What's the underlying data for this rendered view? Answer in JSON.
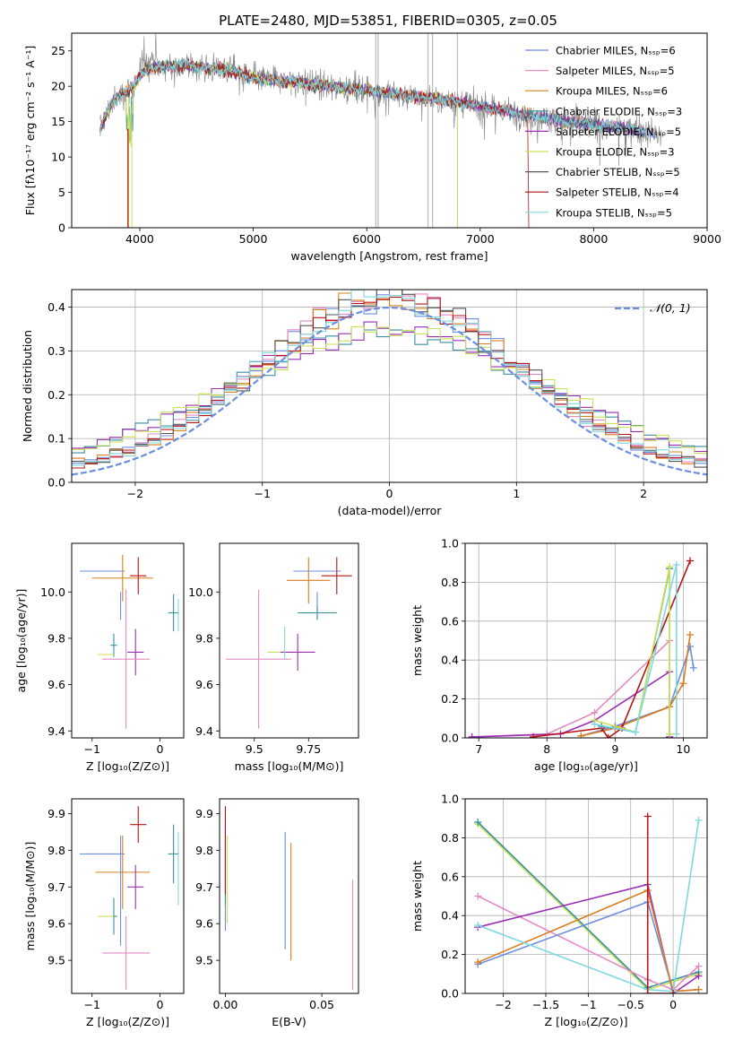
{
  "chart_data": [
    {
      "id": "spectrum",
      "type": "line",
      "title": "PLATE=2480, MJD=53851, FIBERID=0305, z=0.05",
      "xlabel": "wavelength [Angstrom, rest frame]",
      "ylabel": "Flux [fλ10⁻¹⁷ erg cm⁻² s⁻¹ A⁻¹]",
      "xlim": [
        3400,
        9000
      ],
      "ylim": [
        0,
        27.5
      ],
      "xticks": [
        4000,
        5000,
        6000,
        7000,
        8000,
        9000
      ],
      "yticks": [
        0,
        5,
        10,
        15,
        20,
        25
      ],
      "grid": false,
      "legend_position": "top-right",
      "legend": [
        {
          "name": "Chabrier MILES, Nₛₛₚ=6",
          "color": "#6b8ee0"
        },
        {
          "name": "Salpeter MILES, Nₛₛₚ=5",
          "color": "#e38bc3"
        },
        {
          "name": "Kroupa MILES, Nₛₛₚ=6",
          "color": "#d97e1f"
        },
        {
          "name": "Chabrier ELODIE, Nₛₛₚ=3",
          "color": "#3a8fa0"
        },
        {
          "name": "Salpeter ELODIE, Nₛₛₚ=5",
          "color": "#9b2fb4"
        },
        {
          "name": "Kroupa ELODIE, Nₛₛₚ=3",
          "color": "#c9e25a"
        },
        {
          "name": "Chabrier STELIB, Nₛₛₚ=5",
          "color": "#555555"
        },
        {
          "name": "Salpeter STELIB, Nₛₛₚ=4",
          "color": "#b81414"
        },
        {
          "name": "Kroupa STELIB, Nₛₛₚ=5",
          "color": "#7fd8e0"
        }
      ],
      "envelope": {
        "x": [
          3650,
          3750,
          3850,
          3950,
          4050,
          4200,
          4400,
          4600,
          4800,
          5000,
          5200,
          5400,
          5600,
          5800,
          6000,
          6200,
          6400,
          6600,
          6800,
          7000,
          7200,
          7400,
          7600,
          7800,
          8000,
          8200,
          8400,
          8600
        ],
        "y": [
          14,
          17.5,
          19,
          20,
          22.5,
          22.8,
          23,
          22.6,
          22.2,
          21.2,
          20.8,
          20.5,
          20.2,
          19.8,
          19.5,
          19.0,
          18.6,
          18.2,
          17.8,
          17.2,
          16.6,
          16.0,
          15.5,
          15.0,
          14.6,
          14.2,
          13.8,
          13.0
        ]
      },
      "data_series_end": 8600
    },
    {
      "id": "residuals",
      "type": "line",
      "xlabel": "(data-model)/error",
      "ylabel": "Normed distribution",
      "xlim": [
        -2.5,
        2.5
      ],
      "ylim": [
        0,
        0.44
      ],
      "xticks": [
        -2,
        -1,
        0,
        1,
        2
      ],
      "yticks": [
        0.0,
        0.1,
        0.2,
        0.3,
        0.4
      ],
      "grid": true,
      "legend_position": "top-right",
      "legend": [
        {
          "name": "𝒩(0, 1)",
          "color": "#6b8ee0",
          "style": "dashed"
        }
      ],
      "gaussian": {
        "mu": 0,
        "sigma": 1
      }
    },
    {
      "id": "age-vs-Z",
      "type": "scatter",
      "xlabel": "Z [log₁₀(Z/Z⊙)]",
      "ylabel": "age  [log₁₀(age/yr)]",
      "xlim": [
        -1.3,
        0.35
      ],
      "ylim": [
        9.37,
        10.21
      ],
      "xticks": [
        -1,
        0
      ],
      "yticks": [
        9.4,
        9.6,
        9.8,
        10.0
      ],
      "grid": false,
      "points": [
        {
          "x": -0.85,
          "xerr": 0.33,
          "y": 10.09,
          "yerr": 0.0,
          "color": "#6b8ee0"
        },
        {
          "x": -0.55,
          "xerr": 0.45,
          "y": 10.06,
          "yerr": 0.1,
          "color": "#d97e1f"
        },
        {
          "x": -0.32,
          "xerr": 0.12,
          "y": 10.07,
          "yerr": 0.08,
          "color": "#b81414"
        },
        {
          "x": -0.58,
          "xerr": 0.0,
          "y": 9.94,
          "yerr": 0.06,
          "color": "#6b8ee0"
        },
        {
          "x": 0.2,
          "xerr": 0.08,
          "y": 9.91,
          "yerr": 0.08,
          "color": "#3a8fa0"
        },
        {
          "x": -0.68,
          "xerr": 0.05,
          "y": 9.77,
          "yerr": 0.05,
          "color": "#3a8fa0"
        },
        {
          "x": -0.8,
          "xerr": 0.12,
          "y": 9.73,
          "yerr": 0.0,
          "color": "#c9e25a"
        },
        {
          "x": -0.36,
          "xerr": 0.12,
          "y": 9.74,
          "yerr": 0.1,
          "color": "#9b2fb4"
        },
        {
          "x": -0.5,
          "xerr": 0.35,
          "y": 9.71,
          "yerr": 0.3,
          "color": "#e38bc3"
        },
        {
          "x": 0.27,
          "xerr": 0.0,
          "y": 9.9,
          "yerr": 0.07,
          "color": "#7fd8e0"
        }
      ]
    },
    {
      "id": "age-vs-mass",
      "type": "scatter",
      "xlabel": "mass [log₁₀(M/M⊙)]",
      "ylabel": "",
      "xlim": [
        9.34,
        9.98
      ],
      "ylim": [
        9.37,
        10.21
      ],
      "xticks": [
        9.5,
        9.75
      ],
      "yticks": [
        9.4,
        9.6,
        9.8,
        10.0
      ],
      "grid": false,
      "points": [
        {
          "x": 9.79,
          "xerr": 0.11,
          "y": 10.09,
          "yerr": 0.0,
          "color": "#6b8ee0"
        },
        {
          "x": 9.75,
          "xerr": 0.1,
          "y": 10.05,
          "yerr": 0.1,
          "color": "#d97e1f"
        },
        {
          "x": 9.88,
          "xerr": 0.07,
          "y": 10.07,
          "yerr": 0.08,
          "color": "#b81414"
        },
        {
          "x": 9.79,
          "xerr": 0.0,
          "y": 9.94,
          "yerr": 0.06,
          "color": "#6b8ee0"
        },
        {
          "x": 9.79,
          "xerr": 0.09,
          "y": 9.91,
          "yerr": 0.03,
          "color": "#3a8fa0"
        },
        {
          "x": 9.63,
          "xerr": 0.07,
          "y": 9.74,
          "yerr": 0.0,
          "color": "#c9e25a"
        },
        {
          "x": 9.7,
          "xerr": 0.08,
          "y": 9.74,
          "yerr": 0.08,
          "color": "#9b2fb4"
        },
        {
          "x": 9.52,
          "xerr": 0.15,
          "y": 9.71,
          "yerr": 0.3,
          "color": "#e38bc3"
        },
        {
          "x": 9.64,
          "xerr": 0.0,
          "y": 9.78,
          "yerr": 0.07,
          "color": "#7fd8e0"
        }
      ]
    },
    {
      "id": "weight-vs-age",
      "type": "line",
      "xlabel": "age  [log₁₀(age/yr)]",
      "ylabel": "mass weight",
      "xlim": [
        6.8,
        10.35
      ],
      "ylim": [
        0,
        1.0
      ],
      "xticks": [
        7,
        8,
        9,
        10
      ],
      "yticks": [
        0.0,
        0.2,
        0.4,
        0.6,
        0.8,
        1.0
      ],
      "grid": true,
      "series": [
        {
          "color": "#e38bc3",
          "x": [
            6.9,
            8.0,
            8.7,
            9.8,
            9.8
          ],
          "y": [
            0.005,
            0.02,
            0.13,
            0.5,
            0.005
          ]
        },
        {
          "color": "#9b2fb4",
          "x": [
            6.9,
            8.2,
            8.7,
            9.8,
            9.8
          ],
          "y": [
            0.005,
            0.02,
            0.09,
            0.34,
            0.005
          ]
        },
        {
          "color": "#6b8ee0",
          "x": [
            8.5,
            9.0,
            9.8,
            10.1,
            10.15
          ],
          "y": [
            0.01,
            0.06,
            0.16,
            0.47,
            0.36
          ]
        },
        {
          "color": "#d97e1f",
          "x": [
            8.5,
            9.0,
            9.8,
            10.0,
            10.1
          ],
          "y": [
            0.01,
            0.05,
            0.16,
            0.28,
            0.53
          ]
        },
        {
          "color": "#b81414",
          "x": [
            7.8,
            8.8,
            8.9,
            9.1,
            10.1
          ],
          "y": [
            0.005,
            0.05,
            0.0,
            0.05,
            0.91
          ]
        },
        {
          "color": "#3a8fa0",
          "x": [
            8.8,
            9.3,
            9.8,
            9.8
          ],
          "y": [
            0.06,
            0.03,
            0.87,
            0.02
          ]
        },
        {
          "color": "#c9e25a",
          "x": [
            8.7,
            9.3,
            9.8,
            9.8
          ],
          "y": [
            0.09,
            0.03,
            0.88,
            0.02
          ]
        },
        {
          "color": "#7fd8e0",
          "x": [
            8.7,
            9.3,
            9.9,
            9.9
          ],
          "y": [
            0.07,
            0.03,
            0.89,
            0.02
          ]
        }
      ]
    },
    {
      "id": "mass-vs-Z",
      "type": "scatter",
      "xlabel": "Z [log₁₀(Z/Z⊙)]",
      "ylabel": "mass [log₁₀(M/M⊙)]",
      "xlim": [
        -1.3,
        0.35
      ],
      "ylim": [
        9.41,
        9.94
      ],
      "xticks": [
        -1,
        0
      ],
      "yticks": [
        9.5,
        9.6,
        9.7,
        9.8,
        9.9
      ],
      "grid": false,
      "points": [
        {
          "x": -0.85,
          "xerr": 0.33,
          "y": 9.79,
          "yerr": 0.0,
          "color": "#6b8ee0"
        },
        {
          "x": -0.55,
          "xerr": 0.4,
          "y": 9.74,
          "yerr": 0.1,
          "color": "#d97e1f"
        },
        {
          "x": -0.32,
          "xerr": 0.12,
          "y": 9.87,
          "yerr": 0.05,
          "color": "#b81414"
        },
        {
          "x": -0.58,
          "xerr": 0.0,
          "y": 9.69,
          "yerr": 0.15,
          "color": "#6b8ee0"
        },
        {
          "x": 0.2,
          "xerr": 0.08,
          "y": 9.79,
          "yerr": 0.08,
          "color": "#3a8fa0"
        },
        {
          "x": -0.68,
          "xerr": 0.05,
          "y": 9.62,
          "yerr": 0.05,
          "color": "#3a8fa0"
        },
        {
          "x": -0.8,
          "xerr": 0.12,
          "y": 9.62,
          "yerr": 0.0,
          "color": "#c9e25a"
        },
        {
          "x": -0.36,
          "xerr": 0.12,
          "y": 9.7,
          "yerr": 0.06,
          "color": "#9b2fb4"
        },
        {
          "x": -0.5,
          "xerr": 0.35,
          "y": 9.52,
          "yerr": 0.1,
          "color": "#e38bc3"
        },
        {
          "x": 0.27,
          "xerr": 0.0,
          "y": 9.75,
          "yerr": 0.1,
          "color": "#7fd8e0"
        }
      ]
    },
    {
      "id": "mass-vs-ebv",
      "type": "scatter",
      "xlabel": "E(B-V)",
      "ylabel": "",
      "xlim": [
        -0.003,
        0.069
      ],
      "ylim": [
        9.41,
        9.94
      ],
      "xticks": [
        0.0,
        0.05
      ],
      "xticklabels": [
        "0.00",
        "0.05"
      ],
      "yticks": [
        9.5,
        9.6,
        9.7,
        9.8,
        9.9
      ],
      "grid": false,
      "points": [
        {
          "x": 0.0,
          "y": 9.73,
          "yerr": 0.15,
          "color": "#6b8ee0"
        },
        {
          "x": 0.0,
          "y": 9.75,
          "yerr": 0.1,
          "color": "#3a8fa0"
        },
        {
          "x": 0.0,
          "y": 9.8,
          "yerr": 0.12,
          "color": "#b81414"
        },
        {
          "x": 0.001,
          "y": 9.72,
          "yerr": 0.12,
          "color": "#c9e25a"
        },
        {
          "x": 0.031,
          "y": 9.69,
          "yerr": 0.16,
          "color": "#6b8ee0"
        },
        {
          "x": 0.034,
          "y": 9.66,
          "yerr": 0.16,
          "color": "#d97e1f"
        },
        {
          "x": 0.066,
          "y": 9.57,
          "yerr": 0.15,
          "color": "#e38bc3"
        }
      ]
    },
    {
      "id": "weight-vs-Z",
      "type": "line",
      "xlabel": "Z [log₁₀(Z/Z⊙)]",
      "ylabel": "mass weight",
      "xlim": [
        -2.45,
        0.4
      ],
      "ylim": [
        0,
        1.0
      ],
      "xticks": [
        -2.0,
        -1.5,
        -1.0,
        -0.5,
        0.0
      ],
      "yticks": [
        0.0,
        0.2,
        0.4,
        0.6,
        0.8,
        1.0
      ],
      "grid": true,
      "series": [
        {
          "color": "#c9e25a",
          "x": [
            -2.3,
            -0.3,
            0.3
          ],
          "y": [
            0.87,
            0.02,
            0.1
          ]
        },
        {
          "color": "#3a8fa0",
          "x": [
            -2.3,
            -0.3,
            0.3
          ],
          "y": [
            0.88,
            0.03,
            0.11
          ]
        },
        {
          "color": "#e38bc3",
          "x": [
            -2.3,
            -0.3,
            0.0,
            0.3
          ],
          "y": [
            0.5,
            0.07,
            0.02,
            0.14
          ]
        },
        {
          "color": "#9b2fb4",
          "x": [
            -2.3,
            -0.3,
            0.0,
            0.3
          ],
          "y": [
            0.34,
            0.56,
            0.0,
            0.09
          ]
        },
        {
          "color": "#6b8ee0",
          "x": [
            -2.3,
            -0.3,
            0.0,
            0.3
          ],
          "y": [
            0.15,
            0.47,
            0.01,
            0.02
          ]
        },
        {
          "color": "#d97e1f",
          "x": [
            -2.3,
            -0.3,
            0.0,
            0.3
          ],
          "y": [
            0.16,
            0.53,
            0.01,
            0.02
          ]
        },
        {
          "color": "#7fd8e0",
          "x": [
            -2.3,
            -0.3,
            0.0,
            0.3
          ],
          "y": [
            0.35,
            0.02,
            0.01,
            0.89
          ]
        },
        {
          "color": "#b81414",
          "x": [
            -0.3,
            -0.3,
            0.0
          ],
          "y": [
            0.91,
            0.0,
            0.0
          ]
        }
      ]
    }
  ]
}
